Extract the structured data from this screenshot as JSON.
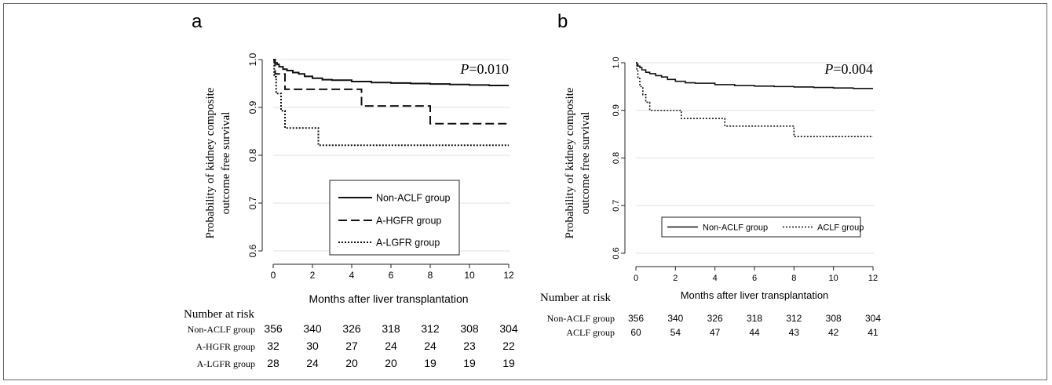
{
  "chart_data": [
    {
      "type": "line",
      "panel_label": "a",
      "p_value_label": "P",
      "p_value_text": "=0.010",
      "ylabel": [
        "Probability of kidney composite",
        "outcome free survival"
      ],
      "xlabel": "Months after liver transplantation",
      "x_ticks": [
        0,
        2,
        4,
        6,
        8,
        10,
        12
      ],
      "y_ticks": [
        0.6,
        0.7,
        0.8,
        0.9,
        1.0
      ],
      "y_tick_labels": [
        "0.6",
        "0.7",
        "0.8",
        "0.9",
        "1.0"
      ],
      "xlim": [
        0,
        12
      ],
      "ylim": [
        0.6,
        1.0
      ],
      "grid": "horizontal",
      "legend_position": "bottom-right",
      "series": [
        {
          "name": "Non-ACLF group",
          "style": "solid",
          "x": [
            0,
            0.05,
            0.1,
            0.2,
            0.3,
            0.5,
            0.7,
            1.0,
            1.3,
            1.6,
            2.0,
            2.5,
            3.0,
            4.0,
            5.0,
            6.0,
            7.0,
            8.0,
            9.0,
            10.0,
            11.0,
            12.0
          ],
          "y": [
            1.0,
            0.997,
            0.993,
            0.99,
            0.985,
            0.98,
            0.977,
            0.973,
            0.97,
            0.965,
            0.961,
            0.958,
            0.957,
            0.954,
            0.952,
            0.951,
            0.95,
            0.949,
            0.948,
            0.947,
            0.946,
            0.946
          ]
        },
        {
          "name": "A-HGFR group",
          "style": "dashed",
          "x": [
            0,
            0.1,
            0.3,
            0.6,
            4.5,
            8.0,
            12.0
          ],
          "y": [
            1.0,
            0.97,
            0.97,
            0.938,
            0.903,
            0.866,
            0.866
          ]
        },
        {
          "name": "A-LGFR group",
          "style": "dotted",
          "x": [
            0,
            0.05,
            0.15,
            0.4,
            0.6,
            2.3,
            12.0
          ],
          "y": [
            1.0,
            0.964,
            0.929,
            0.893,
            0.857,
            0.821,
            0.821
          ]
        }
      ],
      "risk_table": {
        "title": "Number at risk",
        "times": [
          0,
          2,
          4,
          6,
          8,
          10,
          12
        ],
        "rows": [
          {
            "label": "Non-ACLF group",
            "values": [
              356,
              340,
              326,
              318,
              312,
              308,
              304
            ]
          },
          {
            "label": "A-HGFR group",
            "values": [
              32,
              30,
              27,
              24,
              24,
              23,
              22
            ]
          },
          {
            "label": "A-LGFR group",
            "values": [
              28,
              24,
              20,
              20,
              19,
              19,
              19
            ]
          }
        ]
      }
    },
    {
      "type": "line",
      "panel_label": "b",
      "p_value_label": "P",
      "p_value_text": "=0.004",
      "ylabel": [
        "Probability of kidney composite",
        "outcome free survival"
      ],
      "xlabel": "Months after liver transplantation",
      "x_ticks": [
        0,
        2,
        4,
        6,
        8,
        10,
        12
      ],
      "y_ticks": [
        0.6,
        0.7,
        0.8,
        0.9,
        1.0
      ],
      "y_tick_labels": [
        "0.6",
        "0.7",
        "0.8",
        "0.9",
        "1.0"
      ],
      "xlim": [
        0,
        12
      ],
      "ylim": [
        0.6,
        1.0
      ],
      "grid": "horizontal",
      "legend_position": "bottom-right",
      "series": [
        {
          "name": "Non-ACLF group",
          "style": "solid",
          "x": [
            0,
            0.05,
            0.1,
            0.2,
            0.3,
            0.5,
            0.7,
            1.0,
            1.3,
            1.6,
            2.0,
            2.5,
            3.0,
            4.0,
            5.0,
            6.0,
            7.0,
            8.0,
            9.0,
            10.0,
            11.0,
            12.0
          ],
          "y": [
            1.0,
            0.997,
            0.993,
            0.99,
            0.985,
            0.98,
            0.977,
            0.973,
            0.97,
            0.965,
            0.961,
            0.958,
            0.957,
            0.954,
            0.952,
            0.951,
            0.95,
            0.949,
            0.948,
            0.947,
            0.946,
            0.946
          ]
        },
        {
          "name": "ACLF group",
          "style": "dotted",
          "x": [
            0,
            0.05,
            0.1,
            0.2,
            0.35,
            0.5,
            0.7,
            2.3,
            4.5,
            8.0,
            12.0
          ],
          "y": [
            1.0,
            0.983,
            0.967,
            0.95,
            0.933,
            0.917,
            0.9,
            0.883,
            0.867,
            0.845,
            0.845
          ]
        }
      ],
      "risk_table": {
        "title": "Number at risk",
        "times": [
          0,
          2,
          4,
          6,
          8,
          10,
          12
        ],
        "rows": [
          {
            "label": "Non-ACLF group",
            "values": [
              356,
              340,
              326,
              318,
              312,
              308,
              304
            ]
          },
          {
            "label": "ACLF group",
            "values": [
              60,
              54,
              47,
              44,
              43,
              42,
              41
            ]
          }
        ]
      }
    }
  ]
}
